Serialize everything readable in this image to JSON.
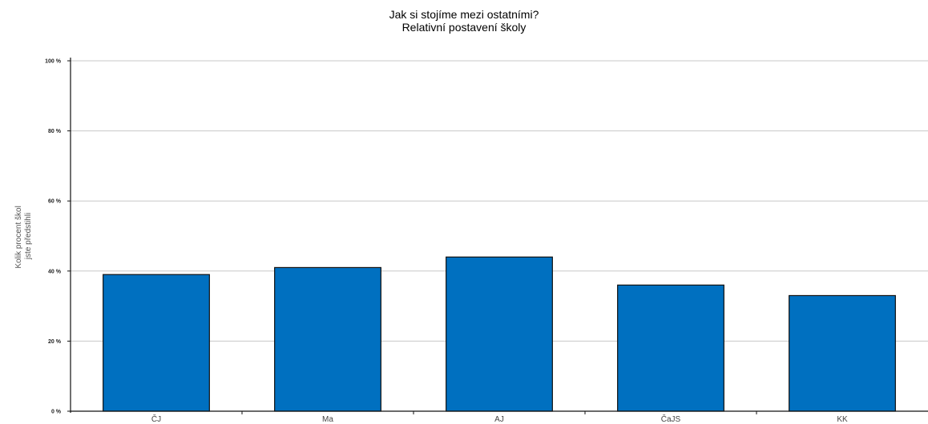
{
  "chart_data": {
    "type": "bar",
    "title": "Jak si stojíme mezi ostatními?",
    "subtitle": "Relativní postavení školy",
    "ylabel_lines": [
      "Kolik procent škol",
      "jste předstihli"
    ],
    "xlabel": "",
    "categories": [
      "ČJ",
      "Ma",
      "AJ",
      "ČaJS",
      "KK"
    ],
    "values": [
      39,
      41,
      44,
      36,
      33
    ],
    "ylim": [
      0,
      100
    ],
    "yticks": [
      0,
      20,
      40,
      60,
      80,
      100
    ],
    "ytick_labels": [
      "0 %",
      "20 %",
      "40 %",
      "60 %",
      "80 %",
      "100 %"
    ],
    "grid": true,
    "legend": "none",
    "colors": {
      "bar": "#0070C0",
      "bar_border": "#111111",
      "grid": "#c8c8c8",
      "axis": "#111111"
    }
  }
}
